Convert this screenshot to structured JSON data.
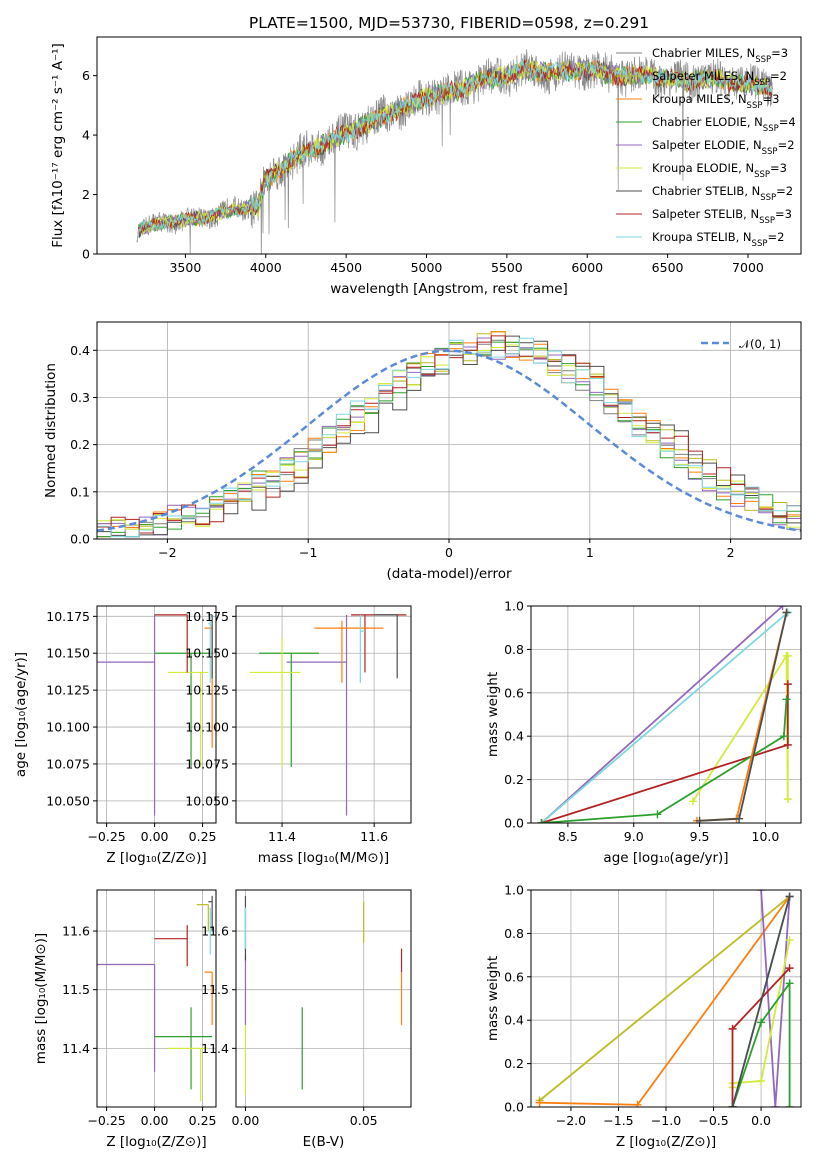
{
  "title": "PLATE=1500, MJD=53730, FIBERID=0598, z=0.291",
  "colors": [
    "#7f7f7f",
    "#bcbd22",
    "#ff7f0e",
    "#2ca02c",
    "#9467bd",
    "#d4ea3a",
    "#4d4d4d",
    "#b22222",
    "#7fd8e0"
  ],
  "chart_data": [
    {
      "id": "spectrum",
      "type": "line",
      "xlabel": "wavelength [Angstrom, rest frame]",
      "ylabel": "Flux [fλ10⁻¹⁷ erg cm⁻² s⁻¹ A⁻¹]",
      "xlim": [
        2950,
        7330
      ],
      "ylim": [
        0,
        7.3
      ],
      "xticks": [
        "3500",
        "4000",
        "4500",
        "5000",
        "5500",
        "6000",
        "6500",
        "7000"
      ],
      "yticks": [
        "0",
        "2",
        "4",
        "6"
      ],
      "legend_position": "upper right",
      "legend": [
        {
          "name": "Chabrier MILES, N",
          "sub": "SSP",
          "suffix": "=3"
        },
        {
          "name": "Salpeter MILES, N",
          "sub": "SSP",
          "suffix": "=2"
        },
        {
          "name": "Kroupa MILES, N",
          "sub": "SSP",
          "suffix": "=3"
        },
        {
          "name": "Chabrier ELODIE, N",
          "sub": "SSP",
          "suffix": "=4"
        },
        {
          "name": "Salpeter ELODIE, N",
          "sub": "SSP",
          "suffix": "=2"
        },
        {
          "name": "Kroupa ELODIE, N",
          "sub": "SSP",
          "suffix": "=3"
        },
        {
          "name": "Chabrier STELIB, N",
          "sub": "SSP",
          "suffix": "=2"
        },
        {
          "name": "Salpeter STELIB, N",
          "sub": "SSP",
          "suffix": "=3"
        },
        {
          "name": "Kroupa STELIB, N",
          "sub": "SSP",
          "suffix": "=2"
        }
      ],
      "continuum": {
        "x": [
          3200,
          3400,
          3600,
          3800,
          3950,
          4000,
          4200,
          4400,
          4600,
          4800,
          4900,
          5000,
          5200,
          5300,
          5500,
          5600,
          5800,
          6000,
          6200,
          6400,
          6600,
          6800,
          7000,
          7150
        ],
        "y": [
          0.8,
          1.1,
          1.2,
          1.5,
          1.6,
          2.5,
          3.3,
          3.8,
          4.3,
          4.8,
          5.0,
          5.3,
          5.5,
          5.8,
          6.0,
          6.2,
          6.1,
          6.2,
          6.0,
          6.0,
          5.8,
          5.9,
          5.7,
          5.6
        ]
      },
      "data_range": [
        3200,
        7150
      ]
    },
    {
      "id": "residuals",
      "type": "step",
      "xlabel": "(data-model)/error",
      "ylabel": "Normed distribution",
      "xlim": [
        -2.5,
        2.5
      ],
      "ylim": [
        0,
        0.46
      ],
      "xticks": [
        "-2",
        "-1",
        "0",
        "1",
        "2"
      ],
      "yticks": [
        "0.0",
        "0.1",
        "0.2",
        "0.3",
        "0.4"
      ],
      "bins": 50,
      "legend": "𝒩(0, 1)",
      "curve": "gaussian",
      "peak_shift": [
        0.3,
        0.35,
        0.32,
        0.28,
        0.3,
        0.33,
        0.45,
        0.38,
        0.3
      ]
    },
    {
      "id": "age_vs_Z",
      "type": "errorbar",
      "xlabel": "Z [log₁₀(Z/Z⊙)]",
      "ylabel": "age  [log₁₀(age/yr)]",
      "xlim": [
        -0.3,
        0.32
      ],
      "ylim": [
        10.035,
        10.182
      ],
      "xticks": [
        "-0.25",
        "0.00",
        "0.25"
      ],
      "yticks": [
        "10.050",
        "10.075",
        "10.100",
        "10.125",
        "10.150",
        "10.175"
      ],
      "points": [
        {
          "c": 4,
          "x": 0.0,
          "y": 10.144,
          "xe": [
            -0.3,
            0.0
          ],
          "ye": [
            10.04,
            10.176
          ]
        },
        {
          "c": 3,
          "x": 0.19,
          "y": 10.15,
          "xe": [
            0.0,
            0.3
          ],
          "ye": [
            10.073,
            10.15
          ]
        },
        {
          "c": 5,
          "x": 0.24,
          "y": 10.137,
          "xe": [
            0.07,
            0.28
          ],
          "ye": [
            10.073,
            10.137
          ]
        },
        {
          "c": 7,
          "x": 0.17,
          "y": 10.176,
          "xe": [
            0.0,
            0.17
          ],
          "ye": [
            10.137,
            10.176
          ]
        },
        {
          "c": 2,
          "x": 0.3,
          "y": 10.167,
          "xe": [
            0.26,
            0.3
          ],
          "ye": [
            10.086,
            10.172
          ]
        },
        {
          "c": 6,
          "x": 0.3,
          "y": 10.176,
          "xe": [
            0.28,
            0.3
          ],
          "ye": [
            10.133,
            10.176
          ]
        },
        {
          "c": 8,
          "x": 0.29,
          "y": 10.17,
          "xe": [
            0.28,
            0.3
          ],
          "ye": [
            10.13,
            10.176
          ]
        }
      ]
    },
    {
      "id": "age_vs_mass",
      "type": "errorbar",
      "xlabel": "mass [log₁₀(M/M⊙)]",
      "ylabel": "",
      "xlim": [
        11.3,
        11.68
      ],
      "ylim": [
        10.035,
        10.182
      ],
      "xticks": [
        "11.4",
        "11.6"
      ],
      "yticks": [
        "10.050",
        "10.075",
        "10.100",
        "10.125",
        "10.150",
        "10.175"
      ],
      "points": [
        {
          "c": 4,
          "x": 11.54,
          "y": 10.144,
          "xe": [
            11.41,
            11.54
          ],
          "ye": [
            10.04,
            10.176
          ]
        },
        {
          "c": 3,
          "x": 11.42,
          "y": 10.15,
          "xe": [
            11.35,
            11.48
          ],
          "ye": [
            10.073,
            10.15
          ]
        },
        {
          "c": 5,
          "x": 11.4,
          "y": 10.137,
          "xe": [
            11.33,
            11.44
          ],
          "ye": [
            10.073,
            10.16
          ]
        },
        {
          "c": 7,
          "x": 11.58,
          "y": 10.176,
          "xe": [
            11.55,
            11.67
          ],
          "ye": [
            10.137,
            10.176
          ]
        },
        {
          "c": 2,
          "x": 11.53,
          "y": 10.167,
          "xe": [
            11.47,
            11.62
          ],
          "ye": [
            10.13,
            10.172
          ]
        },
        {
          "c": 6,
          "x": 11.65,
          "y": 10.176,
          "xe": [
            11.6,
            11.65
          ],
          "ye": [
            10.133,
            10.176
          ]
        },
        {
          "c": 8,
          "x": 11.57,
          "y": 10.165,
          "xe": [
            11.57,
            11.58
          ],
          "ye": [
            10.13,
            10.176
          ]
        }
      ]
    },
    {
      "id": "mass_weight_vs_age",
      "type": "line",
      "xlabel": "age  [log₁₀(age/yr)]",
      "ylabel": "mass weight",
      "xlim": [
        8.22,
        10.27
      ],
      "ylim": [
        0,
        1
      ],
      "xticks": [
        "8.5",
        "9.0",
        "9.5",
        "10.0"
      ],
      "yticks": [
        "0.0",
        "0.2",
        "0.4",
        "0.6",
        "0.8",
        "1.0"
      ],
      "series": [
        {
          "c": 4,
          "x": [
            8.3,
            10.13
          ],
          "y": [
            0.0,
            1.0
          ]
        },
        {
          "c": 8,
          "x": [
            8.3,
            10.17
          ],
          "y": [
            0.0,
            0.97
          ]
        },
        {
          "c": 5,
          "x": [
            9.45,
            10.16,
            10.17,
            10.17
          ],
          "y": [
            0.1,
            0.77,
            0.11,
            0.77
          ]
        },
        {
          "c": 7,
          "x": [
            8.3,
            10.17,
            10.17
          ],
          "y": [
            0.0,
            0.36,
            0.64
          ]
        },
        {
          "c": 3,
          "x": [
            8.3,
            9.18,
            10.14,
            10.16
          ],
          "y": [
            0.0,
            0.04,
            0.4,
            0.57
          ]
        },
        {
          "c": 2,
          "x": [
            9.48,
            9.78,
            10.16
          ],
          "y": [
            0.01,
            0.02,
            0.97
          ]
        },
        {
          "c": 6,
          "x": [
            9.5,
            9.8,
            10.16
          ],
          "y": [
            0.01,
            0.02,
            0.97
          ]
        }
      ]
    },
    {
      "id": "mass_vs_Z",
      "type": "errorbar",
      "xlabel": "Z [log₁₀(Z/Z⊙)]",
      "ylabel": "mass [log₁₀(M/M⊙)]",
      "xlim": [
        -0.3,
        0.32
      ],
      "ylim": [
        11.3,
        11.67
      ],
      "xticks": [
        "-0.25",
        "0.00",
        "0.25"
      ],
      "yticks": [
        "11.4",
        "11.5",
        "11.6"
      ],
      "points": [
        {
          "c": 4,
          "x": 0.0,
          "y": 11.543,
          "xe": [
            -0.3,
            0.0
          ],
          "ye": [
            11.36,
            11.543
          ]
        },
        {
          "c": 3,
          "x": 0.19,
          "y": 11.42,
          "xe": [
            0.0,
            0.3
          ],
          "ye": [
            11.33,
            11.47
          ]
        },
        {
          "c": 5,
          "x": 0.24,
          "y": 11.4,
          "xe": [
            0.07,
            0.28
          ],
          "ye": [
            11.31,
            11.4
          ]
        },
        {
          "c": 7,
          "x": 0.17,
          "y": 11.587,
          "xe": [
            0.0,
            0.17
          ],
          "ye": [
            11.54,
            11.61
          ]
        },
        {
          "c": 2,
          "x": 0.3,
          "y": 11.53,
          "xe": [
            0.26,
            0.3
          ],
          "ye": [
            11.44,
            11.53
          ]
        },
        {
          "c": 6,
          "x": 0.3,
          "y": 11.65,
          "xe": [
            0.28,
            0.3
          ],
          "ye": [
            11.6,
            11.66
          ]
        },
        {
          "c": 1,
          "x": 0.28,
          "y": 11.645,
          "xe": [
            0.22,
            0.28
          ],
          "ye": [
            11.6,
            11.645
          ]
        },
        {
          "c": 8,
          "x": 0.29,
          "y": 11.6,
          "xe": [
            0.28,
            0.3
          ],
          "ye": [
            11.56,
            11.64
          ]
        }
      ]
    },
    {
      "id": "mass_vs_EBV",
      "type": "errorbar",
      "xlabel": "E(B-V)",
      "ylabel": "",
      "xlim": [
        -0.004,
        0.07
      ],
      "ylim": [
        11.3,
        11.67
      ],
      "xticks": [
        "0.00",
        "0.05"
      ],
      "yticks": [
        "11.4",
        "11.5",
        "11.6"
      ],
      "points": [
        {
          "c": 5,
          "x": 0.0,
          "y": 11.4,
          "xe": [
            0,
            0
          ],
          "ye": [
            11.32,
            11.44
          ]
        },
        {
          "c": 3,
          "x": 0.024,
          "y": 11.4,
          "xe": [
            0.024,
            0.024
          ],
          "ye": [
            11.33,
            11.47
          ]
        },
        {
          "c": 4,
          "x": 0.0,
          "y": 11.5,
          "xe": [
            0,
            0
          ],
          "ye": [
            11.44,
            11.56
          ]
        },
        {
          "c": 6,
          "x": 0.0,
          "y": 11.6,
          "xe": [
            0,
            0
          ],
          "ye": [
            11.55,
            11.66
          ]
        },
        {
          "c": 8,
          "x": 0.0,
          "y": 11.6,
          "xe": [
            0,
            0
          ],
          "ye": [
            11.57,
            11.64
          ]
        },
        {
          "c": 1,
          "x": 0.05,
          "y": 11.62,
          "xe": [
            0.05,
            0.05
          ],
          "ye": [
            11.58,
            11.65
          ]
        },
        {
          "c": 2,
          "x": 0.066,
          "y": 11.5,
          "xe": [
            0.066,
            0.066
          ],
          "ye": [
            11.44,
            11.53
          ]
        },
        {
          "c": 7,
          "x": 0.066,
          "y": 11.55,
          "xe": [
            0.066,
            0.066
          ],
          "ye": [
            11.53,
            11.57
          ]
        }
      ]
    },
    {
      "id": "mass_weight_vs_Z",
      "type": "line",
      "xlabel": "Z [log₁₀(Z/Z⊙)]",
      "ylabel": "mass weight",
      "xlim": [
        -2.42,
        0.42
      ],
      "ylim": [
        0,
        1
      ],
      "xticks": [
        "-2.0",
        "-1.5",
        "-1.0",
        "-0.5",
        "0.0"
      ],
      "yticks": [
        "0.0",
        "0.2",
        "0.4",
        "0.6",
        "0.8",
        "1.0"
      ],
      "series": [
        {
          "c": 1,
          "x": [
            -2.33,
            0.3
          ],
          "y": [
            0.03,
            0.97
          ]
        },
        {
          "c": 2,
          "x": [
            -2.33,
            -1.3,
            0.3
          ],
          "y": [
            0.02,
            0.01,
            0.97
          ]
        },
        {
          "c": 4,
          "x": [
            0.0,
            0.15,
            0.3
          ],
          "y": [
            1.0,
            0.0,
            0.97
          ]
        },
        {
          "c": 8,
          "x": [
            -0.3,
            0.3
          ],
          "y": [
            0.0,
            0.97
          ]
        },
        {
          "c": 5,
          "x": [
            -0.3,
            -0.3,
            0.0,
            0.3
          ],
          "y": [
            0.09,
            0.11,
            0.12,
            0.77
          ]
        },
        {
          "c": 7,
          "x": [
            -0.3,
            -0.3,
            0.3
          ],
          "y": [
            0.0,
            0.36,
            0.64
          ]
        },
        {
          "c": 3,
          "x": [
            -0.3,
            0.0,
            0.3,
            0.3
          ],
          "y": [
            0.0,
            0.39,
            0.57,
            0.0
          ]
        },
        {
          "c": 6,
          "x": [
            -0.3,
            0.3
          ],
          "y": [
            0.0,
            0.97
          ]
        }
      ]
    }
  ]
}
